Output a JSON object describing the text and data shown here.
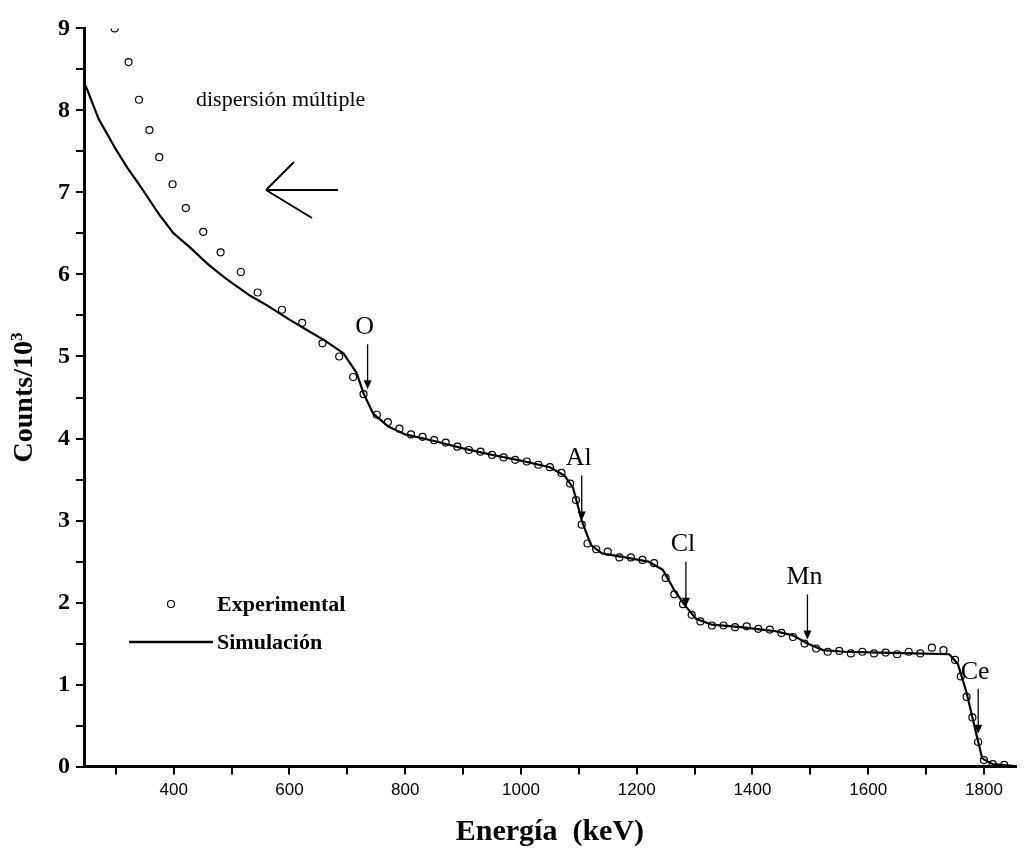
{
  "chart_data": {
    "type": "scatter",
    "xlabel": "Energía  (keV)",
    "ylabel": "Counts/10$^{3}$",
    "xlim": [
      245,
      1855
    ],
    "xticks": [
      {
        "value": 300,
        "label": null
      },
      400,
      {
        "value": 500,
        "label": null
      },
      600,
      {
        "value": 700,
        "label": null
      },
      800,
      {
        "value": 900,
        "label": null
      },
      1000,
      {
        "value": 1100,
        "label": null
      },
      1200,
      {
        "value": 1300,
        "label": null
      },
      1400,
      {
        "value": 1500,
        "label": null
      },
      1600,
      {
        "value": 1700,
        "label": null
      },
      1800
    ],
    "ylim": [
      0,
      9
    ],
    "yticks": [
      0,
      {
        "value": 0.5,
        "label": null
      },
      1,
      {
        "value": 1.5,
        "label": null
      },
      2,
      {
        "value": 2.5,
        "label": null
      },
      3,
      {
        "value": 3.5,
        "label": null
      },
      4,
      {
        "value": 4.5,
        "label": null
      },
      5,
      {
        "value": 5.5,
        "label": null
      },
      6,
      {
        "value": 6.5,
        "label": null
      },
      7,
      {
        "value": 7.5,
        "label": null
      },
      8,
      {
        "value": 8.5,
        "label": null
      },
      9
    ],
    "grid": false,
    "legend": "bottom left",
    "series": [
      {
        "name": "Experimental",
        "type": "scatter",
        "marker": "circle",
        "color": "#000000",
        "x": [
          298,
          322,
          340,
          358,
          375,
          398,
          421,
          451,
          481,
          516,
          545,
          587,
          622,
          657,
          686,
          710,
          728,
          751,
          770,
          790,
          810,
          830,
          850,
          870,
          890,
          910,
          930,
          950,
          970,
          990,
          1010,
          1030,
          1050,
          1070,
          1085,
          1095,
          1105,
          1115,
          1130,
          1150,
          1170,
          1190,
          1210,
          1230,
          1250,
          1265,
          1280,
          1295,
          1310,
          1330,
          1350,
          1370,
          1390,
          1410,
          1430,
          1450,
          1470,
          1490,
          1510,
          1530,
          1550,
          1570,
          1590,
          1610,
          1630,
          1650,
          1670,
          1690,
          1710,
          1730,
          1750,
          1760,
          1770,
          1780,
          1790,
          1800,
          1815,
          1835
        ],
        "values": [
          9.0,
          8.59,
          8.13,
          7.76,
          7.43,
          7.1,
          6.81,
          6.52,
          6.27,
          6.03,
          5.78,
          5.57,
          5.41,
          5.16,
          5.0,
          4.75,
          4.54,
          4.29,
          4.2,
          4.12,
          4.05,
          4.02,
          3.98,
          3.95,
          3.9,
          3.86,
          3.84,
          3.8,
          3.77,
          3.74,
          3.72,
          3.68,
          3.65,
          3.58,
          3.45,
          3.25,
          2.95,
          2.72,
          2.65,
          2.62,
          2.55,
          2.55,
          2.52,
          2.48,
          2.3,
          2.1,
          1.98,
          1.85,
          1.77,
          1.72,
          1.72,
          1.7,
          1.71,
          1.68,
          1.67,
          1.63,
          1.58,
          1.5,
          1.44,
          1.4,
          1.41,
          1.38,
          1.4,
          1.38,
          1.39,
          1.37,
          1.4,
          1.38,
          1.45,
          1.42,
          1.3,
          1.1,
          0.85,
          0.6,
          0.3,
          0.08,
          0.03,
          0.02
        ]
      },
      {
        "name": "Simulación",
        "type": "line",
        "line_style": "solid",
        "color": "#000000",
        "x": [
          248,
          270,
          298,
          320,
          340,
          375,
          400,
          428,
          460,
          492,
          530,
          562,
          600,
          633,
          660,
          693,
          716,
          728,
          745,
          770,
          800,
          850,
          900,
          950,
          1000,
          1050,
          1075,
          1090,
          1105,
          1121,
          1140,
          1180,
          1220,
          1245,
          1265,
          1285,
          1303,
          1330,
          1380,
          1440,
          1470,
          1495,
          1522,
          1560,
          1620,
          1680,
          1740,
          1755,
          1770,
          1785,
          1797,
          1815,
          1850
        ],
        "values": [
          8.3,
          7.9,
          7.55,
          7.3,
          7.1,
          6.73,
          6.5,
          6.33,
          6.12,
          5.94,
          5.75,
          5.62,
          5.45,
          5.31,
          5.2,
          5.04,
          4.8,
          4.55,
          4.3,
          4.15,
          4.05,
          3.97,
          3.88,
          3.8,
          3.73,
          3.65,
          3.55,
          3.4,
          3.0,
          2.7,
          2.6,
          2.55,
          2.5,
          2.4,
          2.15,
          1.95,
          1.8,
          1.73,
          1.7,
          1.65,
          1.6,
          1.5,
          1.42,
          1.4,
          1.39,
          1.38,
          1.37,
          1.25,
          0.9,
          0.45,
          0.1,
          0.03,
          0.01
        ]
      }
    ],
    "annotations": [
      "dispersión múltiple",
      {
        "text": "O",
        "x": 735,
        "y": 4.6
      },
      {
        "text": "Al",
        "x": 1105,
        "y": 3.0
      },
      {
        "text": "Cl",
        "x": 1285,
        "y": 1.95
      },
      {
        "text": "Mn",
        "x": 1495,
        "y": 1.55
      },
      {
        "text": "Ce",
        "x": 1790,
        "y": 0.4
      }
    ]
  }
}
